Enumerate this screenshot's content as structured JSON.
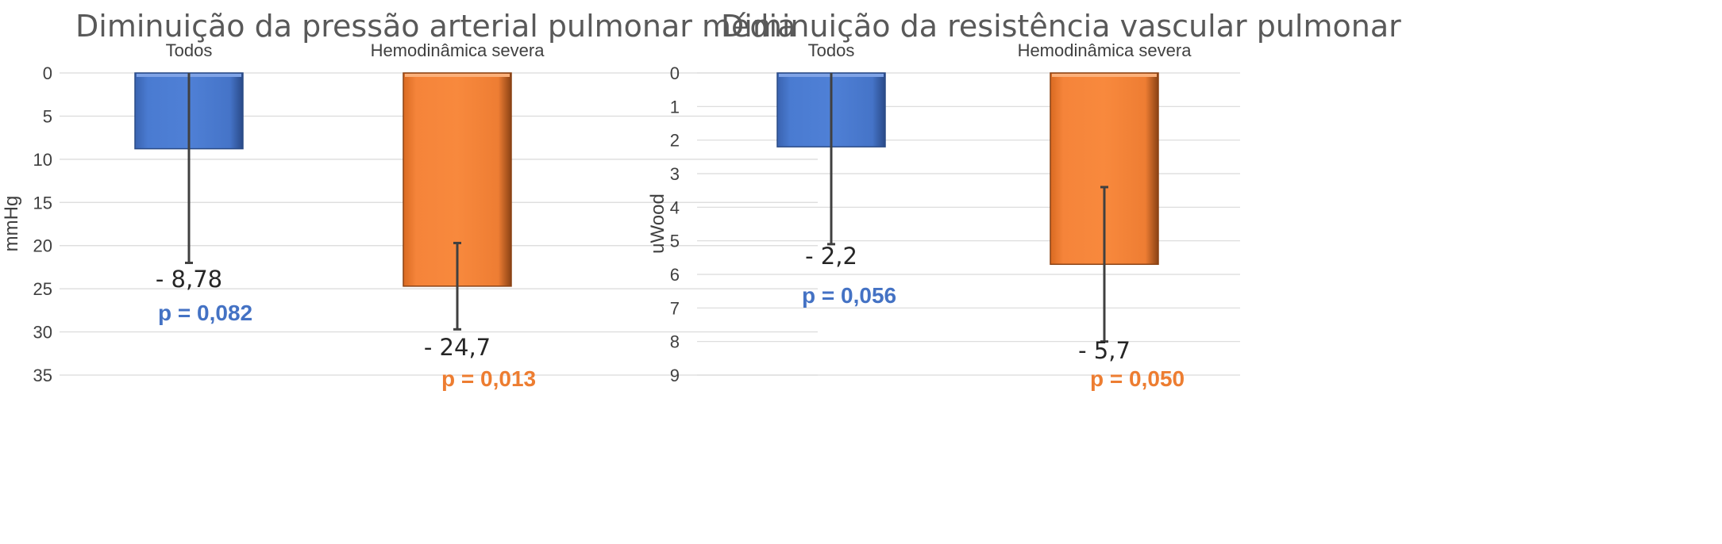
{
  "chart_data": [
    {
      "type": "bar",
      "title": "Diminuição da pressão arterial pulmonar média",
      "ylabel": "mmHg",
      "xlabel": "",
      "y_axis_inverted": true,
      "ylim": [
        0,
        35
      ],
      "yticks": [
        "0",
        "5",
        "10",
        "15",
        "20",
        "25",
        "30",
        "35"
      ],
      "x_axis_position": "top",
      "grid": true,
      "categories": [
        "Todos",
        "Hemodinâmica severa"
      ],
      "values": [
        8.78,
        24.7
      ],
      "error_bars": [
        [
          0,
          22
        ],
        [
          19.7,
          29.7
        ]
      ],
      "data_labels": [
        "- 8,78",
        "- 24,7"
      ],
      "p_values": [
        "p = 0,082",
        "p = 0,013"
      ],
      "colors": [
        "#4472c4",
        "#ed7d31"
      ]
    },
    {
      "type": "bar",
      "title": "Diminuição da resistência vascular pulmonar",
      "ylabel": "uWood",
      "xlabel": "",
      "y_axis_inverted": true,
      "ylim": [
        0,
        9
      ],
      "yticks": [
        "0",
        "1",
        "2",
        "3",
        "4",
        "5",
        "6",
        "7",
        "8",
        "9"
      ],
      "x_axis_position": "top",
      "grid": true,
      "categories": [
        "Todos",
        "Hemodinâmica severa"
      ],
      "values": [
        2.2,
        5.7
      ],
      "error_bars": [
        [
          0,
          5.1
        ],
        [
          3.4,
          8.0
        ]
      ],
      "data_labels": [
        "- 2,2",
        "- 5,7"
      ],
      "p_values": [
        "p = 0,056",
        "p = 0,050"
      ],
      "colors": [
        "#4472c4",
        "#ed7d31"
      ]
    }
  ]
}
